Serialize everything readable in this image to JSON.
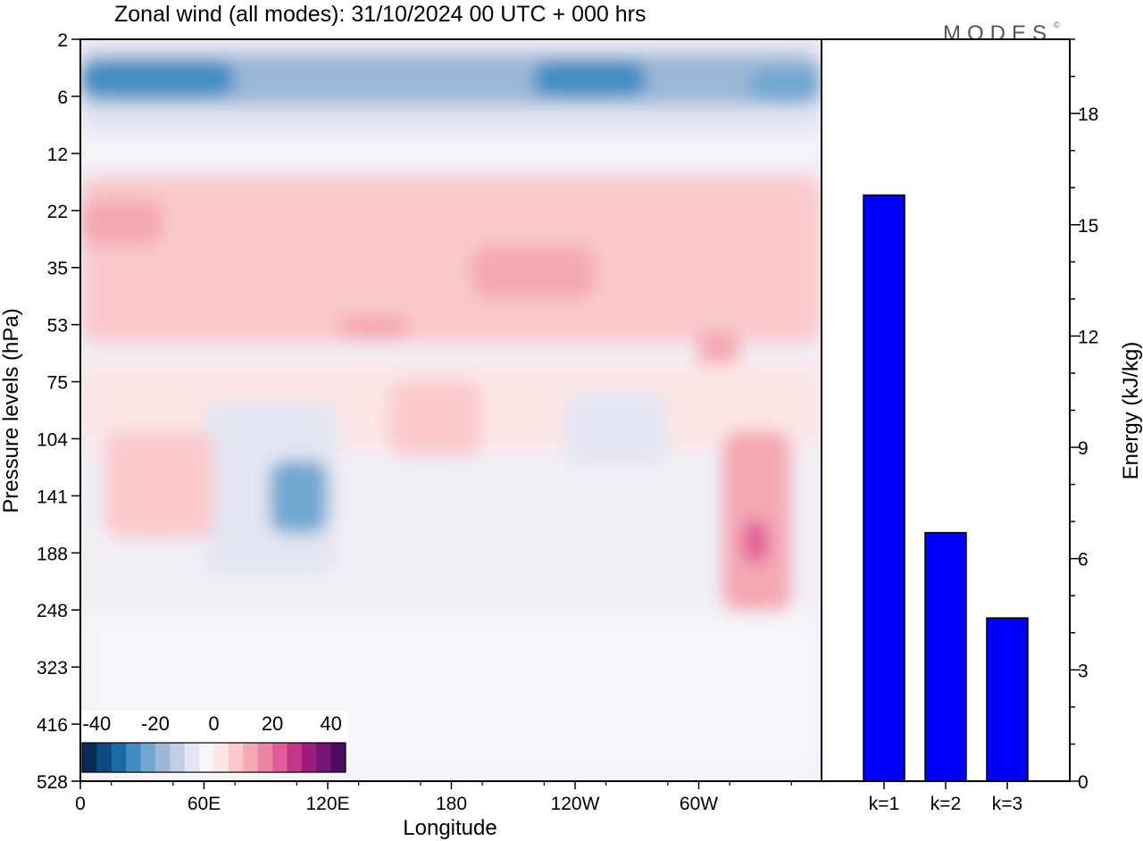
{
  "chart_data": [
    {
      "type": "heatmap",
      "title": "Zonal wind (all modes):  31/10/2024  00 UTC  + 000 hrs",
      "xlabel": "Longitude",
      "ylabel": "Pressure levels (hPa)",
      "x_ticks": [
        "0",
        "60E",
        "120E",
        "180",
        "120W",
        "60W"
      ],
      "y_ticks": [
        "2",
        "6",
        "12",
        "22",
        "35",
        "53",
        "75",
        "104",
        "141",
        "188",
        "248",
        "323",
        "416",
        "528"
      ],
      "colorbar": {
        "tick_labels": [
          "-40",
          "-20",
          "0",
          "20",
          "40"
        ],
        "range": [
          -45,
          45
        ],
        "colors": [
          "#082a54",
          "#0d4b80",
          "#1a6aa5",
          "#3f8dc3",
          "#6fa7d1",
          "#9cb8d8",
          "#c2cce4",
          "#e4e6f2",
          "#f7f4fa",
          "#fde6e6",
          "#f9c9cd",
          "#f4a8b4",
          "#ee84a4",
          "#e05c98",
          "#c6358a",
          "#a01b7e",
          "#761575",
          "#4d0a5e"
        ]
      },
      "regions": [
        {
          "lon": [
            0,
            360
          ],
          "lev": [
            2,
            10
          ],
          "value": -8
        },
        {
          "lon": [
            0,
            360
          ],
          "lev": [
            3,
            7
          ],
          "value": -18
        },
        {
          "lon": [
            0,
            75
          ],
          "lev": [
            3.5,
            6
          ],
          "value": -28
        },
        {
          "lon": [
            100,
            150
          ],
          "lev": [
            4,
            6.5
          ],
          "value": -20
        },
        {
          "lon": [
            220,
            275
          ],
          "lev": [
            3.5,
            6
          ],
          "value": -26
        },
        {
          "lon": [
            325,
            360
          ],
          "lev": [
            4,
            6.5
          ],
          "value": -22
        },
        {
          "lon": [
            0,
            360
          ],
          "lev": [
            10,
            14
          ],
          "value": -3
        },
        {
          "lon": [
            0,
            360
          ],
          "lev": [
            16,
            60
          ],
          "value": 6
        },
        {
          "lon": [
            0,
            40
          ],
          "lev": [
            20,
            30
          ],
          "value": 12
        },
        {
          "lon": [
            190,
            250
          ],
          "lev": [
            30,
            45
          ],
          "value": 14
        },
        {
          "lon": [
            125,
            160
          ],
          "lev": [
            50,
            58
          ],
          "value": 12
        },
        {
          "lon": [
            300,
            320
          ],
          "lev": [
            55,
            75
          ],
          "value": 12
        },
        {
          "lon": [
            0,
            360
          ],
          "lev": [
            68,
            110
          ],
          "value": 2
        },
        {
          "lon": [
            150,
            195
          ],
          "lev": [
            75,
            115
          ],
          "value": 9
        },
        {
          "lon": [
            60,
            125
          ],
          "lev": [
            85,
            210
          ],
          "value": -6
        },
        {
          "lon": [
            92,
            120
          ],
          "lev": [
            118,
            172
          ],
          "value": -22
        },
        {
          "lon": [
            235,
            285
          ],
          "lev": [
            80,
            120
          ],
          "value": -6
        },
        {
          "lon": [
            12,
            65
          ],
          "lev": [
            100,
            175
          ],
          "value": 6
        },
        {
          "lon": [
            312,
            345
          ],
          "lev": [
            100,
            250
          ],
          "value": 14
        },
        {
          "lon": [
            322,
            334
          ],
          "lev": [
            160,
            200
          ],
          "value": 24
        },
        {
          "lon": [
            0,
            360
          ],
          "lev": [
            250,
            528
          ],
          "value": -1
        }
      ]
    },
    {
      "type": "bar",
      "categories": [
        "k=1",
        "k=2",
        "k=3"
      ],
      "values": [
        15.8,
        6.7,
        4.4
      ],
      "ylabel": "Energy (kJ/kg)",
      "ylim": [
        0,
        20
      ],
      "y_ticks": [
        0,
        3,
        6,
        9,
        12,
        15,
        18
      ],
      "bar_color": "#0000ff"
    }
  ],
  "brand": {
    "logo_text": "MODES",
    "logo_mark": "©"
  }
}
